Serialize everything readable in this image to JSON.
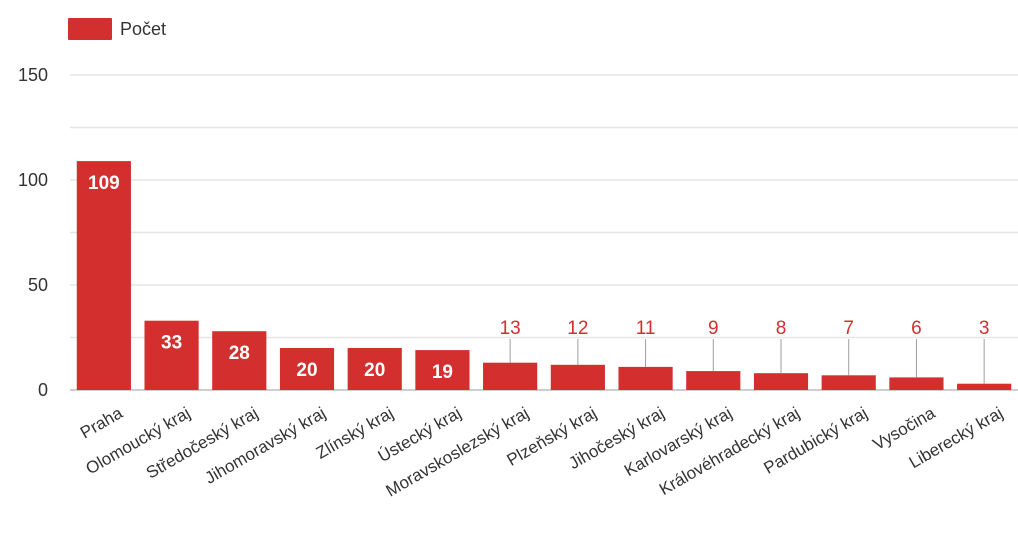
{
  "colors": {
    "bar": "#d32f2f",
    "grid": "#e6e6e6",
    "axis_text": "#333333"
  },
  "chart_data": {
    "type": "bar",
    "categories": [
      "Praha",
      "Olomoucký kraj",
      "Středočeský kraj",
      "Jihomoravský kraj",
      "Zlínský kraj",
      "Ústecký kraj",
      "Moravskoslezský kraj",
      "Plzeňský kraj",
      "Jihočeský kraj",
      "Karlovarský kraj",
      "Královéhradecký kraj",
      "Pardubický kraj",
      "Vysočina",
      "Liberecký kraj"
    ],
    "series": [
      {
        "name": "Počet",
        "values": [
          109,
          33,
          28,
          20,
          20,
          19,
          13,
          12,
          11,
          9,
          8,
          7,
          6,
          3
        ]
      }
    ],
    "ylim": [
      0,
      150
    ],
    "yticks": [
      "0",
      "50",
      "100",
      "150"
    ],
    "grid": true,
    "legend": "top-left"
  }
}
